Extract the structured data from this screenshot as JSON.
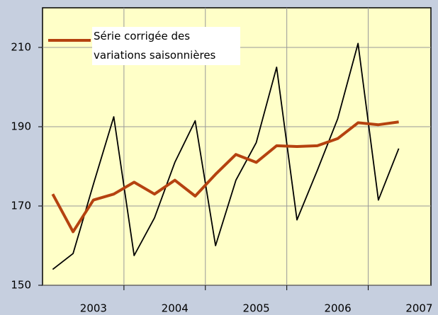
{
  "chart_data": {
    "type": "line",
    "x": [
      2002.125,
      2002.375,
      2002.625,
      2002.875,
      2003.125,
      2003.375,
      2003.625,
      2003.875,
      2004.125,
      2004.375,
      2004.625,
      2004.875,
      2005.125,
      2005.375,
      2005.625,
      2005.875,
      2006.125,
      2006.375
    ],
    "series": [
      {
        "name": null,
        "color": "#000000",
        "values": [
          154,
          158,
          175.5,
          192.5,
          157.5,
          167,
          181,
          191.5,
          160,
          176.5,
          186,
          205,
          166.5,
          179,
          192,
          211,
          171.5,
          184.5
        ]
      },
      {
        "name": "Série corrigée des variations saisonnières",
        "color": "#b5420f",
        "values": [
          173,
          163.5,
          171.5,
          173,
          176,
          173,
          176.5,
          172.5,
          178,
          183,
          181,
          185.2,
          185,
          185.2,
          187,
          191,
          190.5,
          191.2
        ]
      }
    ],
    "xlim": [
      2002,
      2006.77
    ],
    "xticks": [
      2003,
      2004,
      2005,
      2006,
      2007
    ],
    "ylim": [
      150,
      220
    ],
    "yticks": [
      150,
      170,
      190,
      210
    ],
    "grid": true,
    "legend": "upper left"
  }
}
